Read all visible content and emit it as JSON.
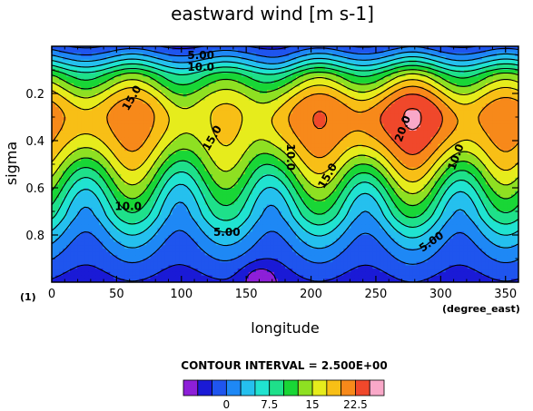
{
  "chart_data": {
    "type": "heatmap",
    "title": "eastward wind [m s-1]",
    "xlabel": "longitude",
    "x_units": "(degree_east)",
    "ylabel": "sigma",
    "panel_label": "(1)",
    "xlim": [
      0,
      360
    ],
    "ylim": [
      1.0,
      0.0
    ],
    "x_ticks": [
      0,
      50,
      100,
      150,
      200,
      250,
      300,
      350
    ],
    "y_ticks": [
      0.2,
      0.4,
      0.6,
      0.8
    ],
    "contour_interval_text": "CONTOUR INTERVAL = 2.500E+00",
    "contour_labels": [
      {
        "text": "5.00",
        "x": 115,
        "y": 0.04,
        "rot": 0
      },
      {
        "text": "10.0",
        "x": 115,
        "y": 0.09,
        "rot": 0
      },
      {
        "text": "15.0",
        "x": 62,
        "y": 0.22,
        "rot": -60
      },
      {
        "text": "15.0",
        "x": 124,
        "y": 0.39,
        "rot": -60
      },
      {
        "text": "10.0",
        "x": 184,
        "y": 0.47,
        "rot": 90
      },
      {
        "text": "15.0",
        "x": 213,
        "y": 0.55,
        "rot": -60
      },
      {
        "text": "20.0",
        "x": 271,
        "y": 0.35,
        "rot": -70
      },
      {
        "text": "10.0",
        "x": 312,
        "y": 0.47,
        "rot": -70
      },
      {
        "text": "10.0",
        "x": 59,
        "y": 0.68,
        "rot": 0
      },
      {
        "text": "5.00",
        "x": 135,
        "y": 0.79,
        "rot": 0
      },
      {
        "text": "5.00",
        "x": 293,
        "y": 0.83,
        "rot": -35
      }
    ],
    "colorbar": {
      "levels": [
        -5,
        -2.5,
        0,
        2.5,
        5,
        7.5,
        10,
        12.5,
        15,
        17.5,
        20,
        22.5,
        25
      ],
      "tick_labels": [
        "0",
        "7.5",
        "15",
        "22.5"
      ],
      "tick_values": [
        0,
        7.5,
        15,
        22.5
      ],
      "colors": [
        "#8d1fd8",
        "#1a1ad6",
        "#1f55ee",
        "#1e88f5",
        "#25c0ee",
        "#20e3d0",
        "#1ee08a",
        "#19d636",
        "#8ee022",
        "#e6ec1c",
        "#f8bf16",
        "#f7891a",
        "#f0482b",
        "#f9a8c8"
      ]
    },
    "jets": [
      {
        "lon": 60,
        "sigma": 0.26,
        "peak": 21.5
      },
      {
        "lon": 128,
        "sigma": 0.27,
        "peak": 17.5
      },
      {
        "lon": 207,
        "sigma": 0.27,
        "peak": 22.5
      },
      {
        "lon": 273,
        "sigma": 0.25,
        "peak": 25.5
      },
      {
        "lon": 350,
        "sigma": 0.27,
        "peak": 21.5
      }
    ],
    "minima": [
      {
        "lon": 160,
        "sigma": 0.98,
        "value": -4
      },
      {
        "lon": 175,
        "sigma": 0.07,
        "value": 1
      }
    ]
  }
}
